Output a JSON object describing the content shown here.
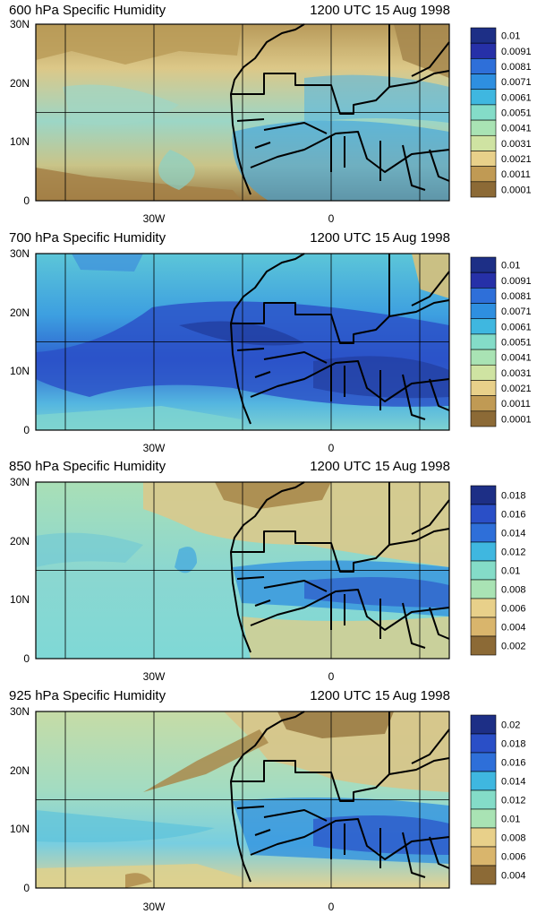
{
  "figure": {
    "panels": [
      {
        "title_left": "600 hPa Specific Humidity",
        "title_right": "1200 UTC 15 Aug 1998",
        "lat_ticks": [
          "30N",
          "20N",
          "10N",
          "0"
        ],
        "lon_ticks": [
          "30W",
          "0"
        ],
        "colorbar_labels": [
          "0.01",
          "0.0091",
          "0.0081",
          "0.0071",
          "0.0061",
          "0.0051",
          "0.0041",
          "0.0031",
          "0.0021",
          "0.0011",
          "0.0001"
        ]
      },
      {
        "title_left": "700 hPa Specific Humidity",
        "title_right": "1200 UTC 15 Aug 1998",
        "lat_ticks": [
          "30N",
          "20N",
          "10N",
          "0"
        ],
        "lon_ticks": [
          "30W",
          "0"
        ],
        "colorbar_labels": [
          "0.01",
          "0.0091",
          "0.0081",
          "0.0071",
          "0.0061",
          "0.0051",
          "0.0041",
          "0.0031",
          "0.0021",
          "0.0011",
          "0.0001"
        ]
      },
      {
        "title_left": "850 hPa Specific Humidity",
        "title_right": "1200 UTC 15 Aug 1998",
        "lat_ticks": [
          "30N",
          "20N",
          "10N",
          "0"
        ],
        "lon_ticks": [
          "30W",
          "0"
        ],
        "colorbar_labels": [
          "0.018",
          "0.016",
          "0.014",
          "0.012",
          "0.01",
          "0.008",
          "0.006",
          "0.004",
          "0.002"
        ]
      },
      {
        "title_left": "925 hPa Specific Humidity",
        "title_right": "1200 UTC 15 Aug 1998",
        "lat_ticks": [
          "30N",
          "20N",
          "10N",
          "0"
        ],
        "lon_ticks": [
          "30W",
          "0"
        ],
        "colorbar_labels": [
          "0.02",
          "0.018",
          "0.016",
          "0.014",
          "0.012",
          "0.01",
          "0.008",
          "0.006",
          "0.004"
        ]
      }
    ],
    "colors": {
      "dry_dark": "#8c6a36",
      "dry_mid": "#c9a45e",
      "dry_light": "#e8d08a",
      "neutral": "#dde3a6",
      "moist_light": "#84dcc8",
      "moist_mid": "#3fb7e0",
      "moist": "#2e8fe0",
      "moist_dark": "#2a4fc7",
      "wettest": "#1d2f86",
      "coast": "#000000"
    }
  }
}
